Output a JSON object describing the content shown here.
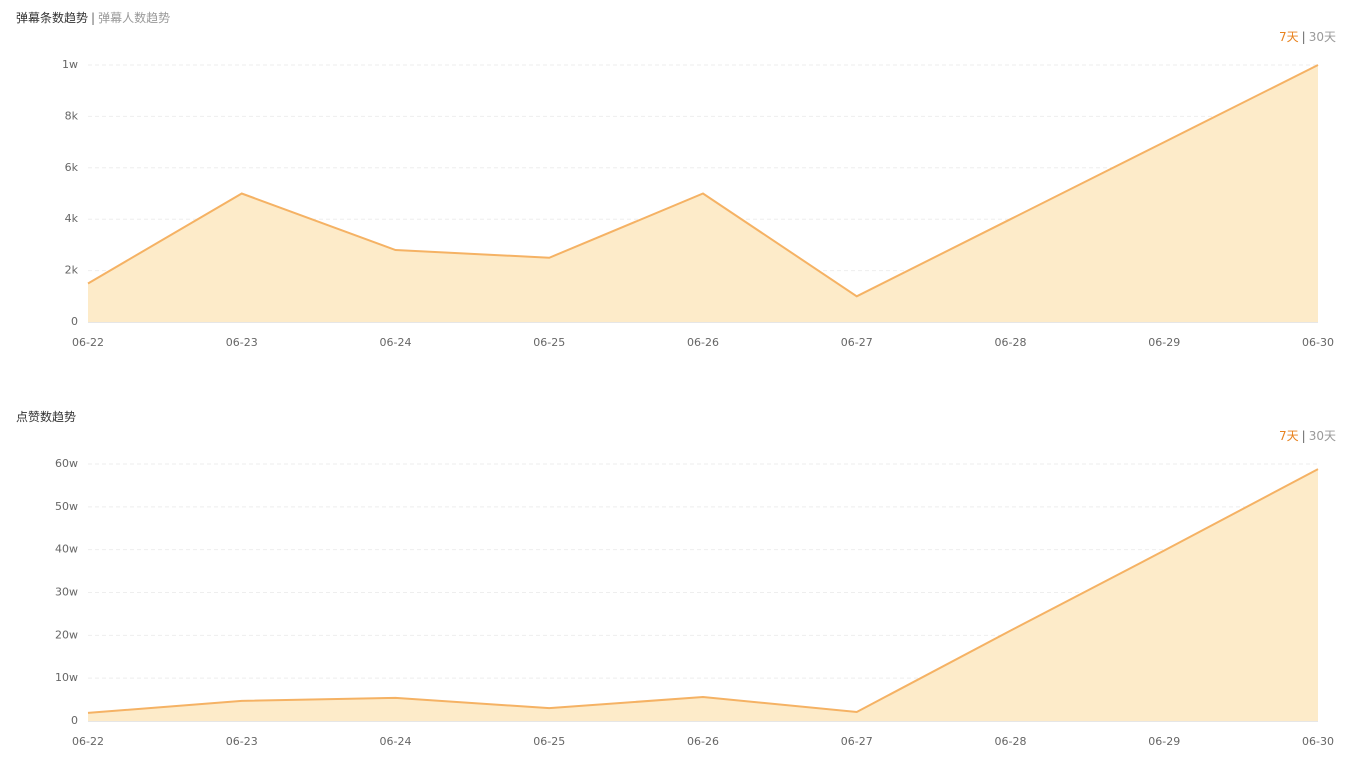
{
  "chart_data": [
    {
      "type": "area",
      "tabs": [
        "弹幕条数趋势",
        "弹幕人数趋势"
      ],
      "tab_separator": "|",
      "ranges": [
        "7天",
        "30天"
      ],
      "range_separator": "|",
      "categories": [
        "06-22",
        "06-23",
        "06-24",
        "06-25",
        "06-26",
        "06-27",
        "06-28",
        "06-29",
        "06-30"
      ],
      "values": [
        1500,
        5000,
        2800,
        2500,
        5000,
        1000,
        4000,
        7000,
        10000
      ],
      "color": "#f5b264",
      "fill_color": "#fdebc9",
      "ylim": [
        0,
        10000
      ],
      "yticks": [
        0,
        {
          "value": 2000,
          "label": "2k"
        },
        {
          "value": 4000,
          "label": "4k"
        },
        {
          "value": 6000,
          "label": "6k"
        },
        {
          "value": 8000,
          "label": "8k"
        },
        {
          "value": 10000,
          "label": "1w"
        }
      ],
      "grid": true
    },
    {
      "type": "area",
      "tabs": [
        "点赞数趋势"
      ],
      "ranges": [
        "7天",
        "30天"
      ],
      "range_separator": "|",
      "categories": [
        "06-22",
        "06-23",
        "06-24",
        "06-25",
        "06-26",
        "06-27",
        "06-28",
        "06-29",
        "06-30"
      ],
      "values": [
        19000,
        47000,
        54000,
        30000,
        56000,
        21000,
        211000,
        398000,
        588000
      ],
      "color": "#f5b264",
      "fill_color": "#fdebc9",
      "ylim": [
        0,
        600000
      ],
      "yticks": [
        0,
        {
          "value": 100000,
          "label": "10w"
        },
        {
          "value": 200000,
          "label": "20w"
        },
        {
          "value": 300000,
          "label": "30w"
        },
        {
          "value": 400000,
          "label": "40w"
        },
        {
          "value": 500000,
          "label": "50w"
        },
        {
          "value": 600000,
          "label": "60w"
        }
      ],
      "grid": true
    }
  ]
}
